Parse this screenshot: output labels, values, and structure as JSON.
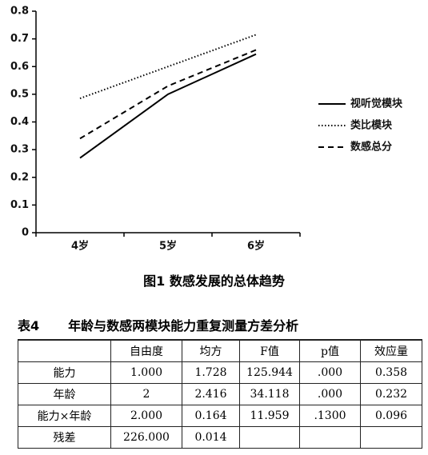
{
  "chart_data": {
    "type": "line",
    "categories": [
      "4岁",
      "5岁",
      "6岁"
    ],
    "series": [
      {
        "name": "视听觉模块",
        "color": "#000000",
        "style": "solid",
        "values": [
          0.27,
          0.5,
          0.645
        ]
      },
      {
        "name": "类比模块",
        "color": "#000000",
        "style": "dotted",
        "values": [
          0.485,
          0.6,
          0.715
        ]
      },
      {
        "name": "数感总分",
        "color": "#000000",
        "style": "dashed",
        "values": [
          0.34,
          0.53,
          0.66
        ]
      }
    ],
    "ylim": [
      0,
      0.8
    ],
    "yticks": [
      0,
      0.1,
      0.2,
      0.3,
      0.4,
      0.5,
      0.6,
      0.7,
      0.8
    ],
    "grid": false,
    "legend": "right"
  },
  "figure_caption": "图1  数感发展的总体趋势",
  "table": {
    "label": "表4",
    "title": "年龄与数感两模块能力重复测量方差分析",
    "columns": [
      "自由度",
      "均方",
      "F值",
      "p值",
      "效应量"
    ],
    "rows": [
      [
        "能力",
        "1.000",
        "1.728",
        "125.944",
        ".000",
        "0.358"
      ],
      [
        "年龄",
        "2",
        "2.416",
        "34.118",
        ".000",
        "0.232"
      ],
      [
        "能力×年龄",
        "2.000",
        "0.164",
        "11.959",
        ".1300",
        "0.096"
      ],
      [
        "残差",
        "226.000",
        "0.014"
      ]
    ]
  }
}
